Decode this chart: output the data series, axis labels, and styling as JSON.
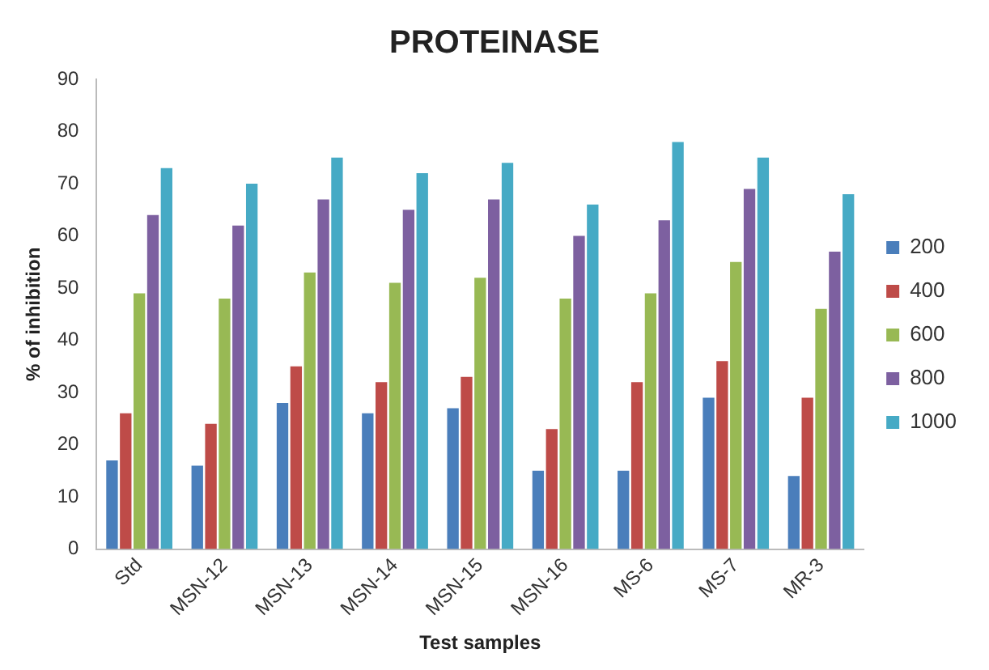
{
  "chart_data": {
    "type": "bar",
    "title": "PROTEINASE",
    "xlabel": "Test samples",
    "ylabel": "% of inhibition",
    "categories": [
      "Std",
      "MSN-12",
      "MSN-13",
      "MSN-14",
      "MSN-15",
      "MSN-16",
      "MS-6",
      "MS-7",
      "MR-3"
    ],
    "series": [
      {
        "name": "200",
        "color": "#4a7ebb",
        "values": [
          17,
          16,
          28,
          26,
          27,
          15,
          15,
          29,
          14
        ]
      },
      {
        "name": "400",
        "color": "#be4b48",
        "values": [
          26,
          24,
          35,
          32,
          33,
          23,
          32,
          36,
          29
        ]
      },
      {
        "name": "600",
        "color": "#98b954",
        "values": [
          49,
          48,
          53,
          51,
          52,
          48,
          49,
          55,
          46
        ]
      },
      {
        "name": "800",
        "color": "#7d60a0",
        "values": [
          64,
          62,
          67,
          65,
          67,
          60,
          63,
          69,
          57
        ]
      },
      {
        "name": "1000",
        "color": "#46aac5",
        "values": [
          73,
          70,
          75,
          72,
          74,
          66,
          78,
          75,
          68
        ]
      }
    ],
    "ylim": [
      0,
      90
    ],
    "yticks": [
      0,
      10,
      20,
      30,
      40,
      50,
      60,
      70,
      80,
      90
    ],
    "grid": false,
    "legend": "right"
  }
}
